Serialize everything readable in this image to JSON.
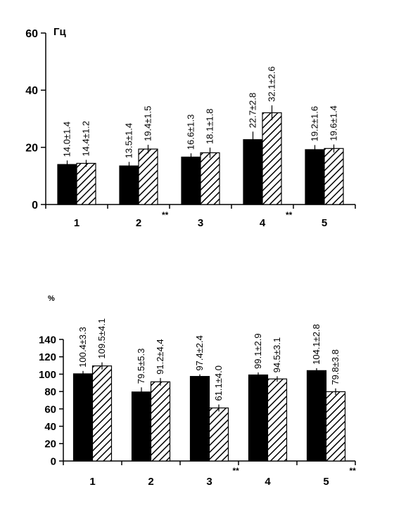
{
  "chart_data": [
    {
      "type": "bar",
      "unit_label": "Гц",
      "ylim": [
        0,
        60
      ],
      "y_ticks": [
        0,
        20,
        40,
        60
      ],
      "categories": [
        "1",
        "2",
        "3",
        "4",
        "5"
      ],
      "series": [
        {
          "fill": "solid",
          "values": [
            14.0,
            13.5,
            16.6,
            22.7,
            19.2
          ],
          "errors": [
            1.4,
            1.4,
            1.3,
            2.8,
            1.6
          ],
          "labels": [
            "14.0±1.4",
            "13.5±1.4",
            "16.6±1.3",
            "22.7±2.8",
            "19.2±1.6"
          ]
        },
        {
          "fill": "hatched",
          "values": [
            14.4,
            19.4,
            18.1,
            32.1,
            19.6
          ],
          "errors": [
            1.2,
            1.5,
            1.8,
            2.6,
            1.4
          ],
          "labels": [
            "14.4±1.2",
            "19.4±1.5",
            "18.1±1.8",
            "32.1±2.6",
            "19.6±1.4"
          ]
        }
      ],
      "significance": [
        {
          "category": "2",
          "mark": "**"
        },
        {
          "category": "4",
          "mark": "**"
        }
      ],
      "grid": false
    },
    {
      "type": "bar",
      "unit_label": "%",
      "ylim": [
        0,
        140
      ],
      "y_ticks": [
        0,
        20,
        40,
        60,
        80,
        100,
        120,
        140
      ],
      "categories": [
        "1",
        "2",
        "3",
        "4",
        "5"
      ],
      "series": [
        {
          "fill": "solid",
          "values": [
            100.4,
            79.5,
            97.4,
            99.1,
            104.1
          ],
          "errors": [
            3.3,
            5.3,
            2.4,
            2.9,
            2.8
          ],
          "labels": [
            "100.4±3.3",
            "79.5±5.3",
            "97.4±2.4",
            "99.1±2.9",
            "104.1±2.8"
          ]
        },
        {
          "fill": "hatched",
          "values": [
            109.5,
            91.2,
            61.1,
            94.5,
            79.8
          ],
          "errors": [
            4.1,
            4.4,
            4.0,
            3.1,
            3.8
          ],
          "labels": [
            "109.5±4.1",
            "91.2±4.4",
            "61.1±4.0",
            "94.5±3.1",
            "79.8±3.8"
          ]
        }
      ],
      "significance": [
        {
          "category": "3",
          "mark": "**"
        },
        {
          "category": "5",
          "mark": "**"
        }
      ],
      "grid": false
    }
  ]
}
